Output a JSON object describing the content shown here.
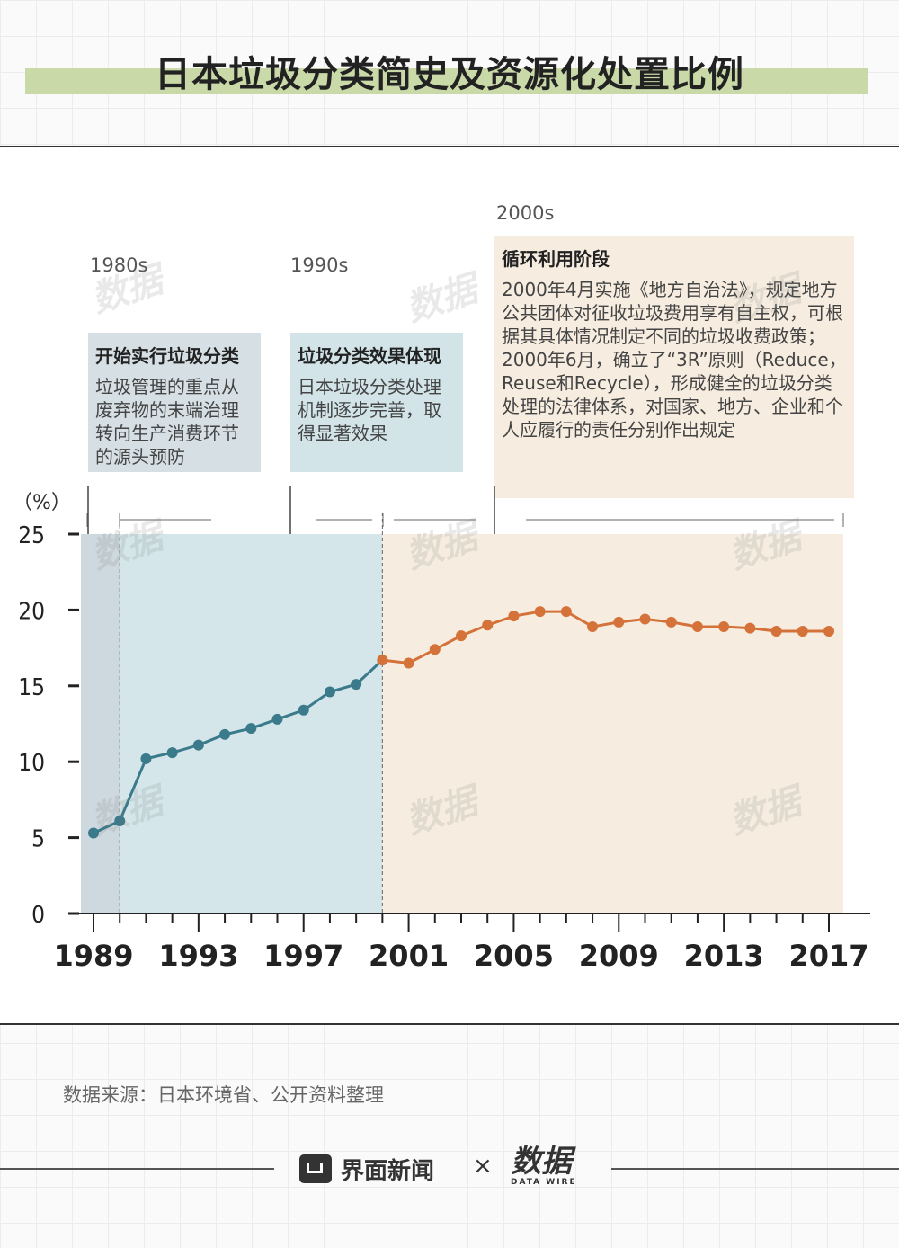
{
  "title": "日本垃圾分类简史及资源化处置比例",
  "eras": [
    {
      "decade": "1980s",
      "heading": "开始实行垃圾分类",
      "text": "垃圾管理的重点从废弃物的末端治理转向生产消费环节的源头预防"
    },
    {
      "decade": "1990s",
      "heading": "垃圾分类效果体现",
      "text": "日本垃圾分类处理机制逐步完善，取得显著效果"
    },
    {
      "decade": "2000s",
      "heading": "循环利用阶段",
      "text1": "2000年4月实施《地方自治法》，规定地方公共团体对征收垃圾费用享有自主权，可根据其具体情况制定不同的垃圾收费政策；",
      "text2": "2000年6月，确立了“3R”原则（Reduce，Reuse和Recycle），形成健全的垃圾分类处理的法律体系，对国家、地方、企业和个人应履行的责任分别作出规定"
    }
  ],
  "chart_data": {
    "type": "line",
    "ylabel": "（%）",
    "ylim": [
      0,
      25
    ],
    "yticks": [
      0,
      5,
      10,
      15,
      20,
      25
    ],
    "xlim": [
      1989,
      2017
    ],
    "xticks": [
      1989,
      1993,
      1997,
      2001,
      2005,
      2009,
      2013,
      2017
    ],
    "x": [
      1989,
      1990,
      1991,
      1992,
      1993,
      1994,
      1995,
      1996,
      1997,
      1998,
      1999,
      2000,
      2001,
      2002,
      2003,
      2004,
      2005,
      2006,
      2007,
      2008,
      2009,
      2010,
      2011,
      2012,
      2013,
      2014,
      2015,
      2016,
      2017
    ],
    "y": [
      5.3,
      6.1,
      10.2,
      10.6,
      11.1,
      11.8,
      12.2,
      12.8,
      13.4,
      14.6,
      15.1,
      16.7,
      16.5,
      17.4,
      18.3,
      19.0,
      19.6,
      19.9,
      19.9,
      18.9,
      19.2,
      19.4,
      19.2,
      18.9,
      18.9,
      18.8,
      18.6,
      18.6,
      18.6
    ],
    "segments": [
      {
        "from": 1989,
        "to": 2000,
        "color": "#3a7a8a"
      },
      {
        "from": 2000,
        "to": 2017,
        "color": "#d4723a"
      }
    ],
    "shading": [
      {
        "from": 1989,
        "to": 1990,
        "color": "#cdd9df"
      },
      {
        "from": 1990,
        "to": 2000,
        "color": "#d4e6ea"
      },
      {
        "from": 2000,
        "to": 2017,
        "color": "#f6ede0"
      }
    ],
    "grid": false
  },
  "source": "数据来源：日本环境省、公开资料整理",
  "footer": {
    "brand": "界面新闻",
    "times": "×",
    "partner": "数据",
    "partner_sub": "DATA WIRE"
  },
  "watermark": "数据"
}
